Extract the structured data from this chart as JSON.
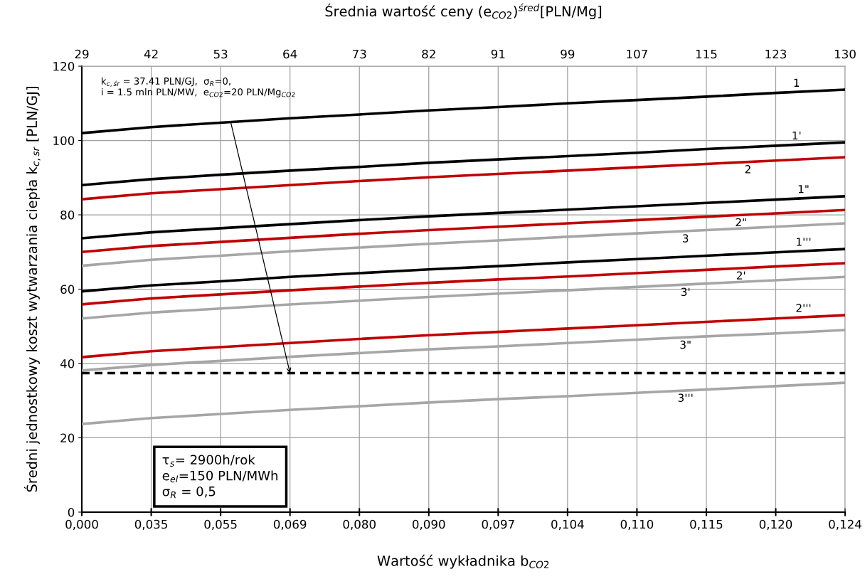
{
  "chart_data": {
    "type": "line",
    "xlabel": "Wartość wykładnika b$_{CO2}$",
    "x2label": "Średnia wartość ceny (e$_{CO2}$)$^{śred}$[PLN/Mg]",
    "ylabel": "Średni jednostkowy koszt wytwarzania ciepła k$_{c,sr}$ [PLN/GJ]",
    "categories": [
      "0,000",
      "0,035",
      "0,055",
      "0,069",
      "0,080",
      "0,090",
      "0,097",
      "0,104",
      "0,110",
      "0,115",
      "0,120",
      "0,124"
    ],
    "ylim": [
      0,
      120
    ],
    "yticks": [
      0,
      20,
      40,
      60,
      80,
      100,
      120
    ],
    "grid": true,
    "legend": false,
    "marker": "none",
    "line_style": "solid",
    "series": [
      {
        "name": "1",
        "color": "#000000",
        "values": [
          102.0,
          103.6,
          104.8,
          106.0,
          107.0,
          108.1,
          109.0,
          110.0,
          110.9,
          111.8,
          112.8,
          113.7
        ]
      },
      {
        "name": "1'",
        "color": "#000000",
        "values": [
          88.0,
          89.6,
          90.8,
          91.9,
          92.9,
          94.0,
          94.9,
          95.8,
          96.7,
          97.7,
          98.6,
          99.5
        ]
      },
      {
        "name": "2",
        "color": "#c00000",
        "values": [
          84.2,
          85.8,
          86.9,
          88.0,
          89.1,
          90.1,
          91.0,
          91.9,
          92.8,
          93.7,
          94.6,
          95.5
        ]
      },
      {
        "name": "1\"",
        "color": "#000000",
        "values": [
          73.7,
          75.3,
          76.4,
          77.5,
          78.6,
          79.6,
          80.5,
          81.4,
          82.3,
          83.2,
          84.1,
          85.0
        ]
      },
      {
        "name": "2\"",
        "color": "#c00000",
        "values": [
          70.0,
          71.6,
          72.7,
          73.8,
          74.9,
          75.9,
          76.8,
          77.7,
          78.6,
          79.5,
          80.4,
          81.3
        ]
      },
      {
        "name": "3",
        "color": "#a6a6a6",
        "values": [
          66.3,
          67.9,
          69.0,
          70.2,
          71.2,
          72.2,
          73.1,
          74.1,
          75.0,
          75.9,
          76.8,
          77.7
        ]
      },
      {
        "name": "1'''",
        "color": "#000000",
        "values": [
          59.4,
          61.0,
          62.1,
          63.3,
          64.3,
          65.3,
          66.2,
          67.2,
          68.1,
          69.0,
          69.9,
          70.8
        ]
      },
      {
        "name": "2'",
        "color": "#c00000",
        "values": [
          55.9,
          57.5,
          58.6,
          59.7,
          60.7,
          61.7,
          62.6,
          63.4,
          64.3,
          65.2,
          66.1,
          67.0
        ]
      },
      {
        "name": "3'",
        "color": "#a6a6a6",
        "values": [
          52.1,
          53.7,
          54.8,
          55.9,
          56.9,
          57.9,
          58.8,
          59.7,
          60.6,
          61.5,
          62.4,
          63.3
        ]
      },
      {
        "name": "2'''",
        "color": "#c00000",
        "values": [
          41.7,
          43.3,
          44.4,
          45.5,
          46.6,
          47.6,
          48.5,
          49.4,
          50.3,
          51.2,
          52.1,
          53.0
        ]
      },
      {
        "name": "3\"",
        "color": "#a6a6a6",
        "values": [
          38.1,
          39.6,
          40.7,
          41.8,
          42.8,
          43.8,
          44.6,
          45.5,
          46.4,
          47.3,
          48.1,
          49.0
        ]
      },
      {
        "name": "3'''",
        "color": "#a6a6a6",
        "values": [
          23.7,
          25.3,
          26.4,
          27.5,
          28.5,
          29.5,
          30.4,
          31.2,
          32.1,
          33.0,
          33.9,
          34.8
        ]
      }
    ],
    "ref_lines": [
      {
        "axis": "y",
        "value": 37.41,
        "color": "#000000",
        "line_style": "dashed",
        "label": "k$_{c,śr}$ = 37.41 PLN/GJ,  σ$_{R}$=0,\ni = 1.5 mln PLN/MW,  e$_{CO2}$=20 PLN/Mg$_{CO2}$"
      }
    ],
    "annotations": [
      "τ$_{s}$= 2900h/rok\ne$_{el}$=150 PLN/MWh\nσ$_{R}$ = 0,5",
      "29",
      "42",
      "53",
      "64",
      "73",
      "82",
      "91",
      "99",
      "107",
      "115",
      "123",
      "130"
    ]
  }
}
